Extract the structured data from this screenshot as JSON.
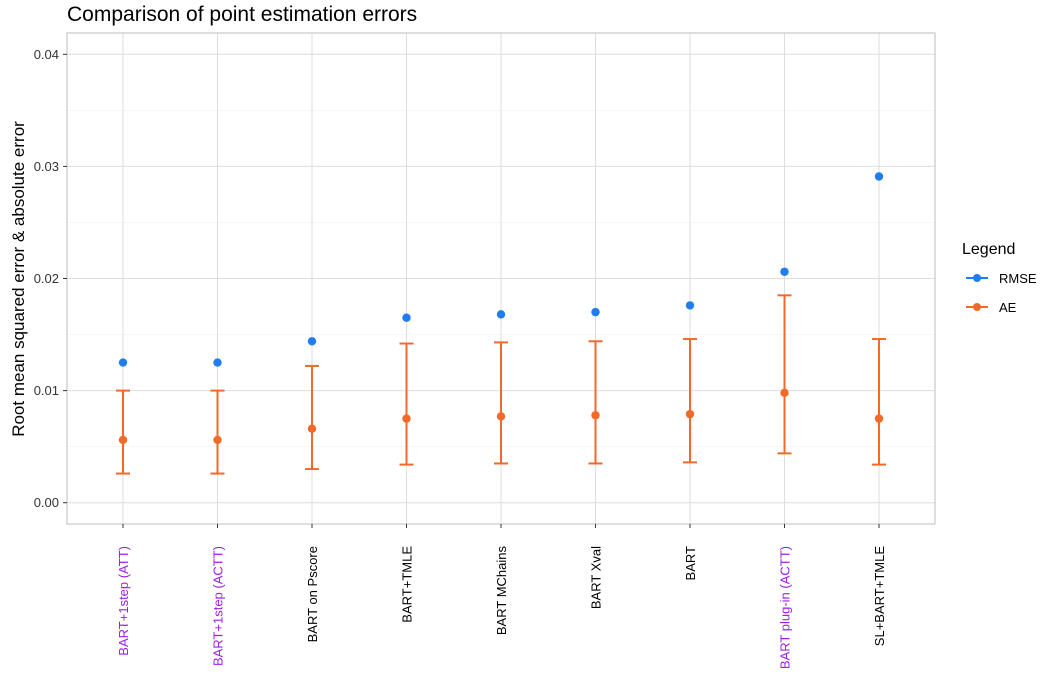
{
  "chart_data": {
    "type": "scatter",
    "title": "Comparison of point estimation errors",
    "xlabel": "",
    "ylabel": "Root mean squared error & absolute error",
    "ylim": [
      -0.0019,
      0.0419
    ],
    "yticks": [
      "0.00",
      "0.01",
      "0.02",
      "0.03",
      "0.04"
    ],
    "ytick_values": [
      0,
      0.01,
      0.02,
      0.03,
      0.04
    ],
    "grid": true,
    "legend": {
      "title": "Legend",
      "position": "right"
    },
    "categories": [
      "BART+1step (ATT)",
      "BART+1step (ACTT)",
      "BART on Pscore",
      "BART+TMLE",
      "BART MChains",
      "BART Xval",
      "BART",
      "BART plug-in (ACTT)",
      "SL+BART+TMLE"
    ],
    "category_colors": [
      "#9b1fe8",
      "#9b1fe8",
      "#000000",
      "#000000",
      "#000000",
      "#000000",
      "#000000",
      "#9b1fe8",
      "#000000"
    ],
    "series": [
      {
        "name": "RMSE",
        "color": "#1f7df0",
        "values": [
          0.0125,
          0.0125,
          0.0144,
          0.0165,
          0.0168,
          0.017,
          0.0176,
          0.0206,
          0.0291
        ]
      },
      {
        "name": "AE",
        "color": "#f26a2a",
        "values": [
          0.0056,
          0.0056,
          0.0066,
          0.0075,
          0.0077,
          0.0078,
          0.0079,
          0.0098,
          0.0075
        ],
        "lower": [
          0.0026,
          0.0026,
          0.003,
          0.0034,
          0.0035,
          0.0035,
          0.0036,
          0.0044,
          0.0034
        ],
        "upper": [
          0.01,
          0.01,
          0.0122,
          0.0142,
          0.0143,
          0.0144,
          0.0146,
          0.0185,
          0.0146
        ]
      }
    ]
  }
}
